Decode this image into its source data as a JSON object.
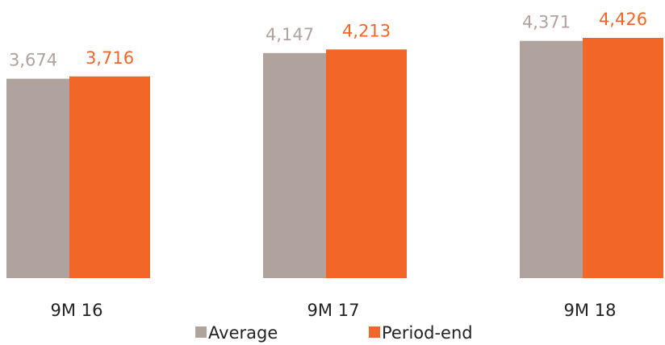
{
  "chart_data": {
    "type": "bar",
    "categories": [
      "9M 16",
      "9M 17",
      "9M 18"
    ],
    "series": [
      {
        "name": "Average",
        "color": "#b0a29d",
        "values": [
          3674,
          4147,
          4371
        ],
        "value_labels": [
          "3,674",
          "4,147",
          "4,371"
        ]
      },
      {
        "name": "Period-end",
        "color": "#f26727",
        "values": [
          3716,
          4213,
          4426
        ],
        "value_labels": [
          "3,716",
          "4,213",
          "4,426"
        ]
      }
    ]
  }
}
